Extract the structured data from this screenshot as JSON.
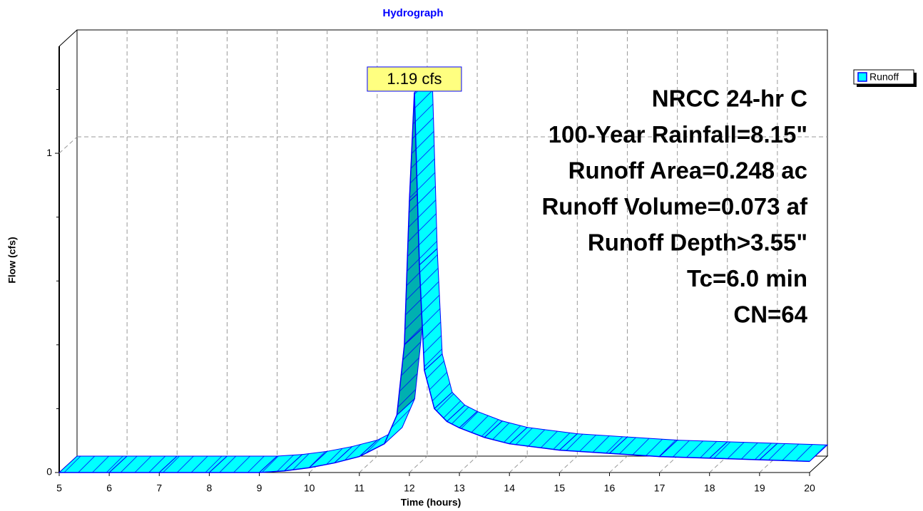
{
  "chart_data": {
    "type": "area3d",
    "title": "Hydrograph",
    "xlabel": "Time  (hours)",
    "ylabel": "Flow  (cfs)",
    "x": [
      5,
      6,
      7,
      8,
      9,
      9.5,
      10,
      10.5,
      11,
      11.5,
      11.75,
      11.9,
      12.0,
      12.1,
      12.2,
      12.3,
      12.5,
      12.75,
      13,
      13.5,
      14,
      15,
      16,
      17,
      18,
      19,
      20
    ],
    "series": [
      {
        "name": "Runoff",
        "color": "#00ffff",
        "values": [
          0,
          0,
          0,
          0,
          0,
          0.005,
          0.015,
          0.03,
          0.05,
          0.09,
          0.18,
          0.4,
          0.85,
          1.19,
          0.65,
          0.32,
          0.2,
          0.16,
          0.14,
          0.11,
          0.09,
          0.07,
          0.06,
          0.05,
          0.045,
          0.04,
          0.035
        ],
        "value_labels": [
          null,
          null,
          null,
          null,
          null,
          null,
          null,
          null,
          null,
          null,
          null,
          null,
          null,
          "1.19 cfs",
          null,
          null,
          null,
          null,
          null,
          null,
          null,
          null,
          null,
          null,
          null,
          null,
          null
        ]
      }
    ],
    "xlim": [
      5,
      20
    ],
    "xticks": [
      5,
      6,
      7,
      8,
      9,
      10,
      11,
      12,
      13,
      14,
      15,
      16,
      17,
      18,
      19,
      20
    ],
    "ylim": [
      0,
      1.335
    ],
    "yticks": [
      0,
      1
    ],
    "yminorticks": [
      0.2,
      0.4,
      0.6,
      0.8,
      1.2
    ],
    "grid": true,
    "legend": "upper right",
    "annotations": [
      "NRCC 24-hr C",
      "100-Year Rainfall=8.15\"",
      "Runoff Area=0.248 ac",
      "Runoff Volume=0.073 af",
      "Runoff Depth>3.55\"",
      "Tc=6.0 min",
      "CN=64"
    ]
  }
}
